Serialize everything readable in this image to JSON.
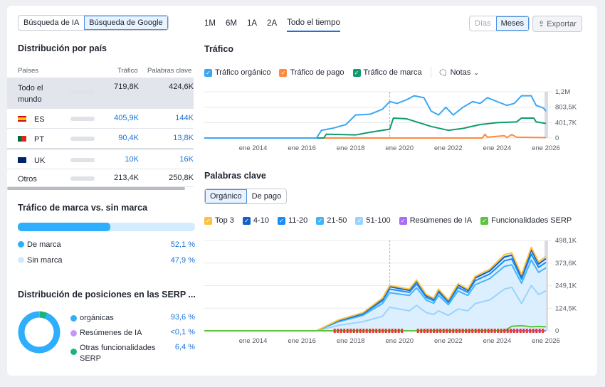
{
  "search_toggle": {
    "ai": "Búsqueda de IA",
    "google": "Búsqueda de Google"
  },
  "country": {
    "title": "Distribución por país",
    "headers": [
      "Países",
      "Tráfico",
      "Palabras clave"
    ],
    "rows": [
      {
        "name": "Todo el mundo",
        "flag": "",
        "share": 1.0,
        "traffic": "719,8K",
        "keywords": "424,6K"
      },
      {
        "name": "ES",
        "flag": "spain-flag-icon",
        "share": 0.56,
        "traffic": "405,9K",
        "keywords": "144K"
      },
      {
        "name": "PT",
        "flag": "portugal-flag-icon",
        "share": 0.13,
        "traffic": "90,4K",
        "keywords": "13,8K"
      },
      {
        "name": "UK",
        "flag": "uk-flag-icon",
        "share": 0.01,
        "traffic": "10K",
        "keywords": "16K"
      },
      {
        "name": "Otros",
        "flag": "",
        "share": 0.3,
        "traffic": "213,4K",
        "keywords": "250,8K"
      }
    ]
  },
  "brand": {
    "title": "Tráfico de marca vs. sin marca",
    "share": 0.521,
    "items": [
      {
        "label": "De marca",
        "value": "52,1 %",
        "color": "#2eaefc"
      },
      {
        "label": "Sin marca",
        "value": "47,9 %",
        "color": "#cfe9fd"
      }
    ]
  },
  "serp": {
    "title": "Distribución de posiciones en las SERP ...",
    "items": [
      {
        "label": "orgánicas",
        "value": "93,6 %",
        "color": "#2eaefc",
        "share": 0.936
      },
      {
        "label": "Resúmenes de IA",
        "value": "<0,1 %",
        "color": "#c795f7",
        "share": 0.001
      },
      {
        "label": "Otras funcionalidades SERP",
        "value": "6,4 %",
        "color": "#16b57a",
        "share": 0.064
      }
    ]
  },
  "periods": [
    "1M",
    "6M",
    "1A",
    "2A",
    "Todo el tiempo"
  ],
  "active_period": "Todo el tiempo",
  "granularity": {
    "days": "Días",
    "months": "Meses",
    "active": "Meses"
  },
  "export_label": "Exportar",
  "traffic": {
    "title": "Tráfico",
    "notes_label": "Notas",
    "legend": [
      {
        "label": "Tráfico orgánico",
        "color": "#3aa7f5"
      },
      {
        "label": "Tráfico de pago",
        "color": "#ff8a3d"
      },
      {
        "label": "Tráfico de marca",
        "color": "#0f9b6e"
      }
    ]
  },
  "keywords": {
    "title": "Palabras clave",
    "tabs": [
      "Orgánico",
      "De pago"
    ],
    "active_tab": "Orgánico",
    "legend": [
      {
        "label": "Top 3",
        "color": "#ffc13b"
      },
      {
        "label": "4-10",
        "color": "#0e62c7"
      },
      {
        "label": "11-20",
        "color": "#1b8cf2"
      },
      {
        "label": "21-50",
        "color": "#43b5fb"
      },
      {
        "label": "51-100",
        "color": "#9bd3fd"
      },
      {
        "label": "Resúmenes de IA",
        "color": "#a86cf5"
      },
      {
        "label": "Funcionalidades SERP",
        "color": "#5cc63a"
      }
    ]
  },
  "chart_data": [
    {
      "type": "line",
      "title": "Tráfico",
      "x_ticks": [
        "ene 2014",
        "ene 2016",
        "ene 2018",
        "ene 2020",
        "ene 2022",
        "ene 2024",
        "ene 2026"
      ],
      "y_ticks": [
        "0",
        "401,7K",
        "803,5K",
        "1,2M"
      ],
      "ylim": [
        0,
        1205000
      ],
      "xlim": [
        2012,
        2026
      ],
      "grid": true,
      "series": [
        {
          "name": "Tráfico orgánico",
          "color": "#3aa7f5",
          "points": [
            [
              2012,
              0
            ],
            [
              2016.6,
              0
            ],
            [
              2016.8,
              200000
            ],
            [
              2017.3,
              260000
            ],
            [
              2017.8,
              350000
            ],
            [
              2018.2,
              600000
            ],
            [
              2018.8,
              620000
            ],
            [
              2019.3,
              750000
            ],
            [
              2019.6,
              950000
            ],
            [
              2019.9,
              900000
            ],
            [
              2020.3,
              1000000
            ],
            [
              2020.6,
              1100000
            ],
            [
              2021.0,
              1050000
            ],
            [
              2021.3,
              700000
            ],
            [
              2021.6,
              600000
            ],
            [
              2021.9,
              800000
            ],
            [
              2022.2,
              600000
            ],
            [
              2022.6,
              800000
            ],
            [
              2023.0,
              950000
            ],
            [
              2023.3,
              900000
            ],
            [
              2023.6,
              1050000
            ],
            [
              2024.0,
              950000
            ],
            [
              2024.4,
              850000
            ],
            [
              2024.7,
              900000
            ],
            [
              2025.0,
              1100000
            ],
            [
              2025.4,
              1100000
            ],
            [
              2025.6,
              850000
            ],
            [
              2025.9,
              780000
            ],
            [
              2026,
              700000
            ]
          ]
        },
        {
          "name": "Tráfico de pago",
          "color": "#ff8a3d",
          "points": [
            [
              2012,
              0
            ],
            [
              2023.4,
              0
            ],
            [
              2023.5,
              100000
            ],
            [
              2023.6,
              20000
            ],
            [
              2024.3,
              60000
            ],
            [
              2024.4,
              10000
            ],
            [
              2024.6,
              90000
            ],
            [
              2024.8,
              20000
            ],
            [
              2026,
              10000
            ]
          ]
        },
        {
          "name": "Tráfico de marca",
          "color": "#0f9b6e",
          "points": [
            [
              2012,
              0
            ],
            [
              2016.9,
              0
            ],
            [
              2017.0,
              100000
            ],
            [
              2018.2,
              80000
            ],
            [
              2018.8,
              150000
            ],
            [
              2019.6,
              230000
            ],
            [
              2019.75,
              520000
            ],
            [
              2020.3,
              500000
            ],
            [
              2020.8,
              400000
            ],
            [
              2021.3,
              300000
            ],
            [
              2022,
              200000
            ],
            [
              2022.6,
              250000
            ],
            [
              2023.3,
              350000
            ],
            [
              2024,
              400000
            ],
            [
              2024.8,
              420000
            ],
            [
              2025.0,
              520000
            ],
            [
              2025.5,
              520000
            ],
            [
              2025.6,
              420000
            ],
            [
              2026,
              380000
            ]
          ]
        }
      ]
    },
    {
      "type": "area",
      "title": "Palabras clave",
      "x_ticks": [
        "ene 2014",
        "ene 2016",
        "ene 2018",
        "ene 2020",
        "ene 2022",
        "ene 2024",
        "ene 2026"
      ],
      "y_ticks": [
        "0",
        "124,5K",
        "249,1K",
        "373,6K",
        "498,1K"
      ],
      "ylim": [
        0,
        498100
      ],
      "xlim": [
        2012,
        2026
      ],
      "grid": true,
      "x": [
        2012,
        2016.6,
        2017.5,
        2018.5,
        2019.3,
        2019.6,
        2020.4,
        2020.7,
        2021.1,
        2021.4,
        2021.6,
        2022.0,
        2022.4,
        2022.8,
        2023.1,
        2023.7,
        2024.3,
        2024.6,
        2025.0,
        2025.4,
        2025.7,
        2026
      ],
      "series": [
        {
          "name": "Top 3",
          "color": "#ffc13b",
          "values": [
            0,
            0,
            60000,
            100000,
            180000,
            250000,
            230000,
            280000,
            200000,
            180000,
            230000,
            170000,
            260000,
            230000,
            300000,
            340000,
            420000,
            430000,
            310000,
            460000,
            380000,
            410000
          ]
        },
        {
          "name": "4-10",
          "color": "#0e62c7",
          "values": [
            0,
            0,
            58000,
            97000,
            175000,
            243000,
            223000,
            272000,
            194000,
            175000,
            223000,
            165000,
            252000,
            223000,
            291000,
            330000,
            407000,
            417000,
            300000,
            446000,
            368000,
            398000
          ]
        },
        {
          "name": "11-20",
          "color": "#1b8cf2",
          "values": [
            0,
            0,
            55000,
            92000,
            165000,
            230000,
            212000,
            258000,
            184000,
            166000,
            212000,
            156000,
            239000,
            212000,
            276000,
            313000,
            386000,
            396000,
            285000,
            423000,
            350000,
            377000
          ]
        },
        {
          "name": "21-50",
          "color": "#43b5fb",
          "values": [
            0,
            0,
            50000,
            85000,
            150000,
            210000,
            195000,
            237000,
            169000,
            152000,
            195000,
            144000,
            220000,
            195000,
            254000,
            288000,
            355000,
            364000,
            262000,
            390000,
            322000,
            347000
          ]
        },
        {
          "name": "51-100",
          "color": "#9bd3fd",
          "values": [
            0,
            0,
            30000,
            50000,
            80000,
            130000,
            110000,
            140000,
            100000,
            90000,
            110000,
            85000,
            120000,
            110000,
            150000,
            170000,
            230000,
            240000,
            150000,
            250000,
            200000,
            220000
          ]
        },
        {
          "name": "Resúmenes de IA",
          "color": "#a86cf5",
          "values": [
            0,
            0,
            0,
            0,
            0,
            0,
            0,
            0,
            0,
            0,
            0,
            0,
            0,
            0,
            0,
            0,
            0,
            0,
            0,
            0,
            0,
            0
          ]
        },
        {
          "name": "Funcionalidades SERP",
          "color": "#5cc63a",
          "values": [
            0,
            0,
            0,
            0,
            0,
            0,
            0,
            0,
            0,
            0,
            0,
            0,
            0,
            0,
            0,
            0,
            0,
            25000,
            28000,
            22000,
            24000,
            22000
          ]
        }
      ]
    }
  ]
}
